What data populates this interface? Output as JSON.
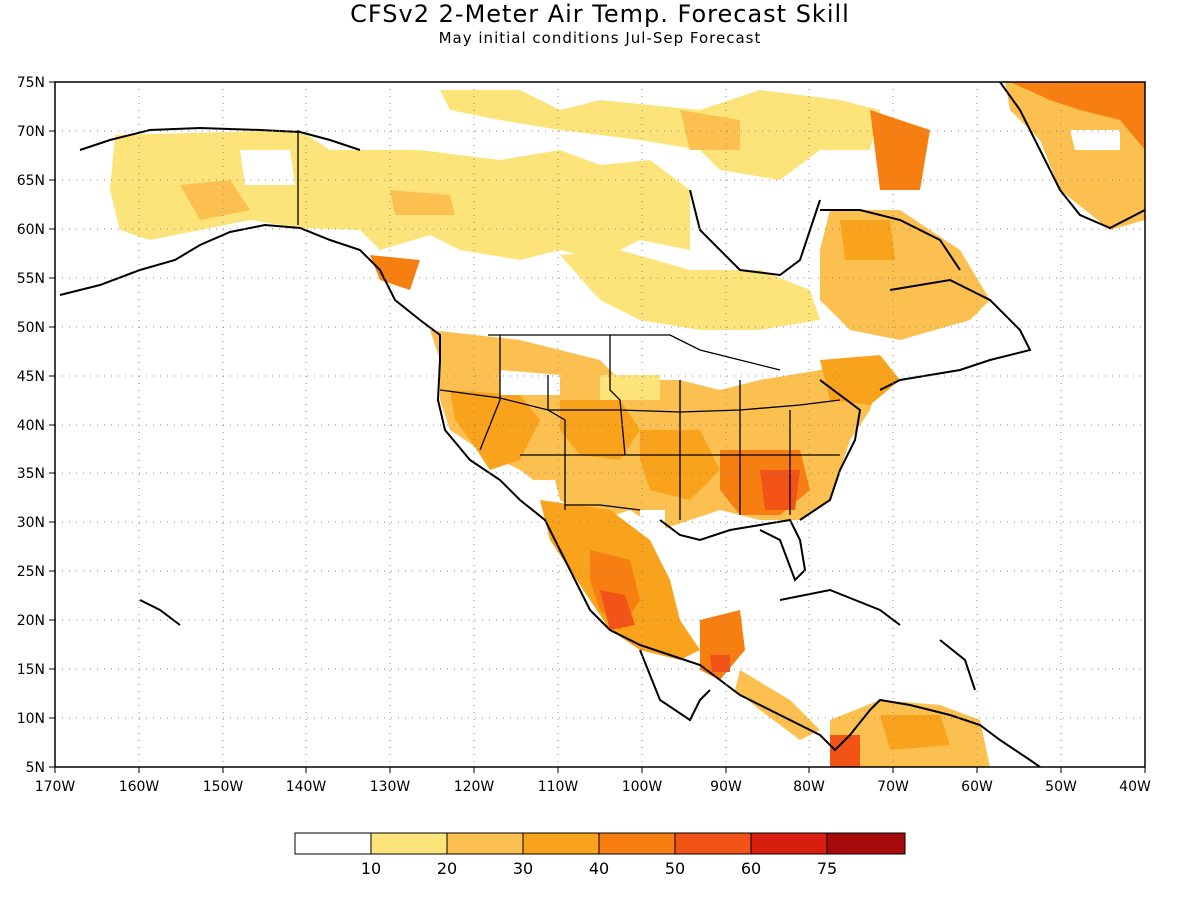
{
  "header": {
    "title": "CFSv2 2-Meter Air Temp. Forecast Skill",
    "subtitle": "May initial conditions   Jul-Sep Forecast"
  },
  "map": {
    "lat_labels": [
      "75N",
      "70N",
      "65N",
      "60N",
      "55N",
      "50N",
      "45N",
      "40N",
      "35N",
      "30N",
      "25N",
      "20N",
      "15N",
      "10N",
      "5N"
    ],
    "lon_labels": [
      "170W",
      "160W",
      "150W",
      "140W",
      "130W",
      "120W",
      "110W",
      "100W",
      "90W",
      "80W",
      "70W",
      "60W",
      "50W",
      "40W"
    ],
    "lon_range": [
      -170,
      -40
    ],
    "lat_range": [
      5,
      75
    ],
    "grid": "dotted",
    "land_fill": "#ffffff",
    "ocean_fill": "#ffffff",
    "coast_color": "#000000"
  },
  "legend": {
    "tick_labels": [
      "10",
      "20",
      "30",
      "40",
      "50",
      "60",
      "75"
    ],
    "colors": [
      "#ffffff",
      "#fde47a",
      "#fbc04f",
      "#f9a21b",
      "#f77f12",
      "#f25316",
      "#d81f0f",
      "#a60a0a"
    ]
  }
}
